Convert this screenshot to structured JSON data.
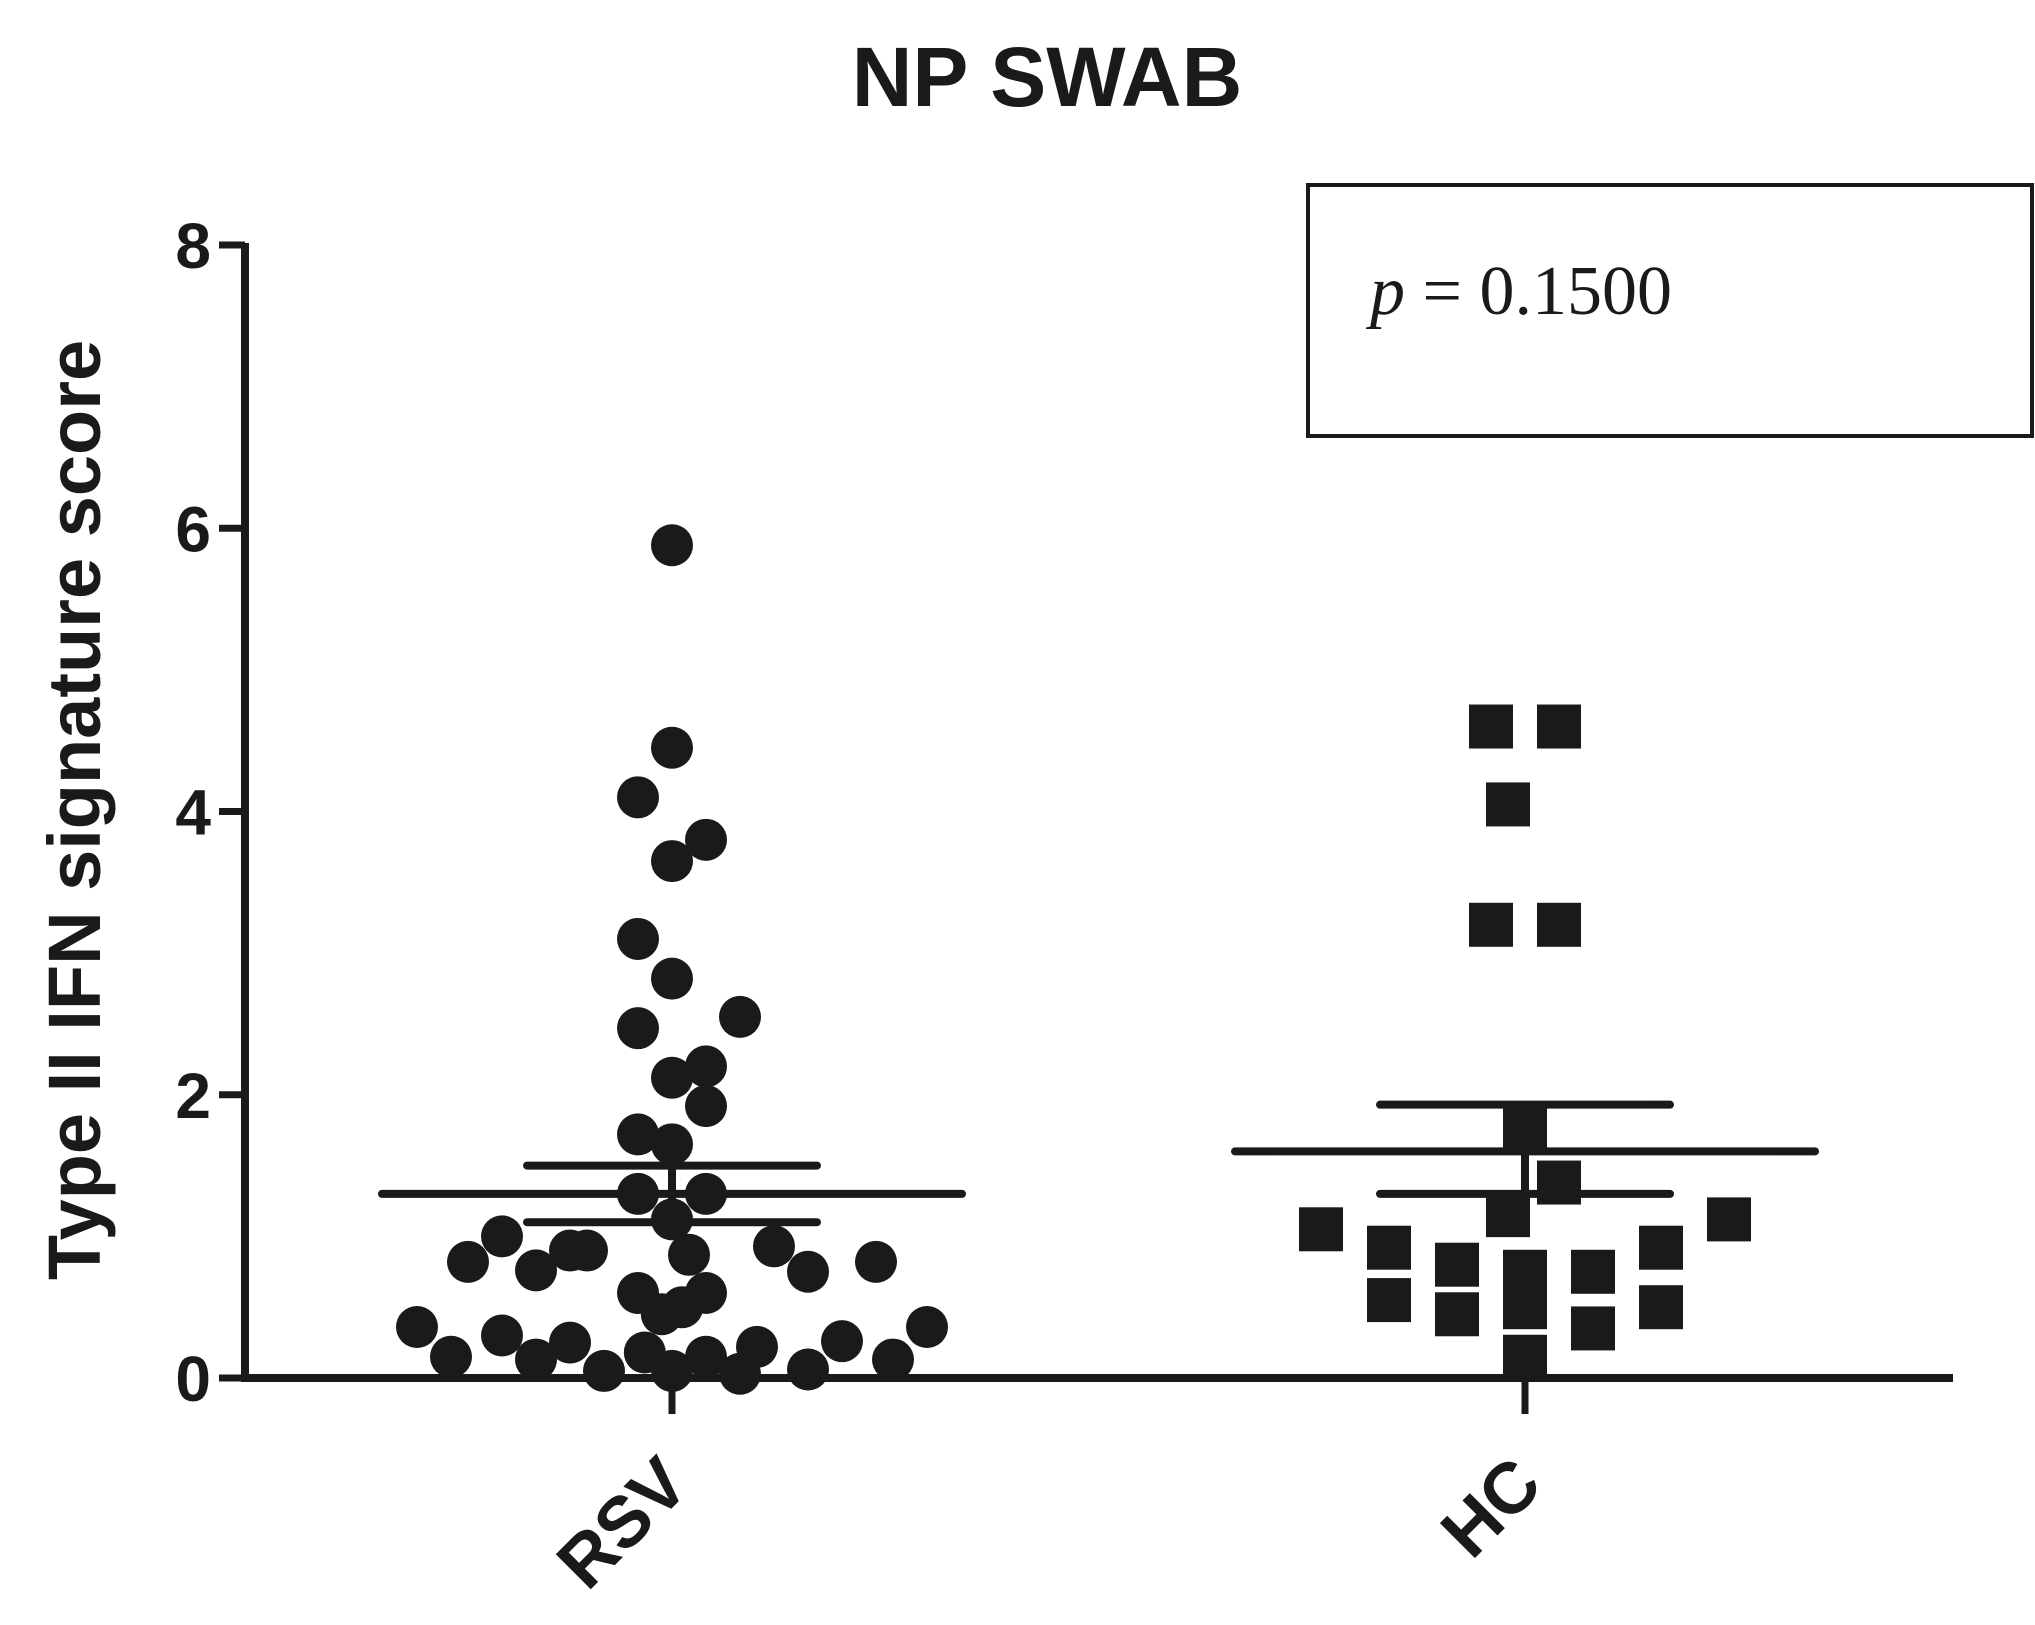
{
  "chart_data": {
    "type": "scatter",
    "title": "NP SWAB",
    "ylabel": "Type II IFN signature score",
    "xlabel": "",
    "ylim": [
      0,
      8
    ],
    "yticks": [
      "0",
      "2",
      "4",
      "6",
      "8"
    ],
    "categories": [
      "RSV",
      "HC"
    ],
    "annotation": {
      "p_symbol": "p",
      "text": " = 0.1500"
    },
    "series": [
      {
        "category": "RSV",
        "marker": "circle",
        "color": "#1a1a1a",
        "mean": 1.3,
        "sem_upper": 1.5,
        "sem_lower": 1.1,
        "points": [
          {
            "offset": 0,
            "y": 5.88
          },
          {
            "offset": 0,
            "y": 4.45
          },
          {
            "offset": -1,
            "y": 4.1
          },
          {
            "offset": 0,
            "y": 3.65
          },
          {
            "offset": 1,
            "y": 3.8
          },
          {
            "offset": -1,
            "y": 3.1
          },
          {
            "offset": 0,
            "y": 2.82
          },
          {
            "offset": -1,
            "y": 2.47
          },
          {
            "offset": 2,
            "y": 2.55
          },
          {
            "offset": 0,
            "y": 2.12
          },
          {
            "offset": 1,
            "y": 2.2
          },
          {
            "offset": 1,
            "y": 1.92
          },
          {
            "offset": -1,
            "y": 1.72
          },
          {
            "offset": 0,
            "y": 1.65
          },
          {
            "offset": -1,
            "y": 1.3
          },
          {
            "offset": 1,
            "y": 1.3
          },
          {
            "offset": 0,
            "y": 1.12
          },
          {
            "offset": -5,
            "y": 1.0
          },
          {
            "offset": -3,
            "y": 0.9
          },
          {
            "offset": -2.5,
            "y": 0.9
          },
          {
            "offset": 0.5,
            "y": 0.87
          },
          {
            "offset": 3,
            "y": 0.93
          },
          {
            "offset": -6,
            "y": 0.82
          },
          {
            "offset": -4,
            "y": 0.76
          },
          {
            "offset": 4,
            "y": 0.75
          },
          {
            "offset": 6,
            "y": 0.82
          },
          {
            "offset": -1,
            "y": 0.6
          },
          {
            "offset": 1,
            "y": 0.6
          },
          {
            "offset": -0.3,
            "y": 0.45
          },
          {
            "offset": 0.3,
            "y": 0.5
          },
          {
            "offset": -7.5,
            "y": 0.36
          },
          {
            "offset": 7.5,
            "y": 0.36
          },
          {
            "offset": -5,
            "y": 0.3
          },
          {
            "offset": -3,
            "y": 0.25
          },
          {
            "offset": 2.5,
            "y": 0.22
          },
          {
            "offset": 5,
            "y": 0.26
          },
          {
            "offset": -6.5,
            "y": 0.15
          },
          {
            "offset": -4,
            "y": 0.13
          },
          {
            "offset": -0.8,
            "y": 0.18
          },
          {
            "offset": 1,
            "y": 0.15
          },
          {
            "offset": 6.5,
            "y": 0.13
          },
          {
            "offset": -2,
            "y": 0.05
          },
          {
            "offset": 0,
            "y": 0.05
          },
          {
            "offset": 2,
            "y": 0.03
          },
          {
            "offset": 4,
            "y": 0.06
          }
        ]
      },
      {
        "category": "HC",
        "marker": "square",
        "color": "#1a1a1a",
        "mean": 1.6,
        "sem_upper": 1.93,
        "sem_lower": 1.3,
        "points": [
          {
            "offset": -1,
            "y": 4.6
          },
          {
            "offset": 1,
            "y": 4.6
          },
          {
            "offset": -0.5,
            "y": 4.05
          },
          {
            "offset": -1,
            "y": 3.2
          },
          {
            "offset": 1,
            "y": 3.2
          },
          {
            "offset": 0,
            "y": 1.75
          },
          {
            "offset": 1,
            "y": 1.38
          },
          {
            "offset": -0.5,
            "y": 1.15
          },
          {
            "offset": -6,
            "y": 1.05
          },
          {
            "offset": 6,
            "y": 1.12
          },
          {
            "offset": -4,
            "y": 0.92
          },
          {
            "offset": 4,
            "y": 0.92
          },
          {
            "offset": -2,
            "y": 0.8
          },
          {
            "offset": 0,
            "y": 0.75
          },
          {
            "offset": 2,
            "y": 0.75
          },
          {
            "offset": -4,
            "y": 0.55
          },
          {
            "offset": -2,
            "y": 0.45
          },
          {
            "offset": 0,
            "y": 0.5
          },
          {
            "offset": 4,
            "y": 0.5
          },
          {
            "offset": 2,
            "y": 0.35
          },
          {
            "offset": 0,
            "y": 0.15
          }
        ]
      }
    ]
  }
}
